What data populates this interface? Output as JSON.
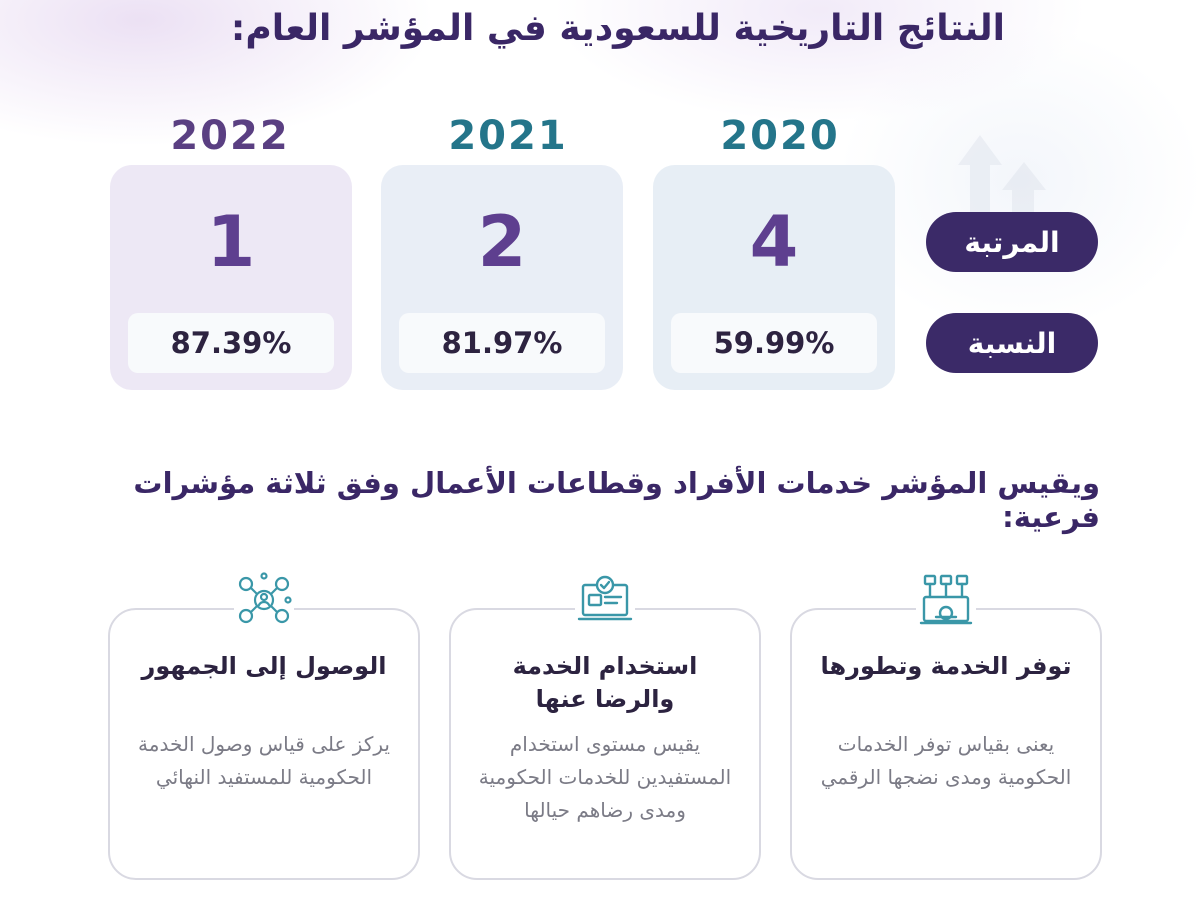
{
  "title": "النتائج التاريخية للسعودية في المؤشر العام:",
  "labels": {
    "rank": "المرتبة",
    "percentage": "النسبة"
  },
  "years": [
    {
      "year": "2020",
      "rank": "4",
      "percentage": "59.99%",
      "year_color": "#24758a"
    },
    {
      "year": "2021",
      "rank": "2",
      "percentage": "81.97%",
      "year_color": "#24758a"
    },
    {
      "year": "2022",
      "rank": "1",
      "percentage": "87.39%",
      "year_color": "#5a3f82"
    }
  ],
  "subtitle": "ويقيس المؤشر خدمات الأفراد وقطاعات الأعمال وفق ثلاثة مؤشرات فرعية:",
  "indicators": [
    {
      "icon": "service-availability-icon",
      "title": "توفر الخدمة وتطورها",
      "body": "يعنى بقياس توفر الخدمات الحكومية ومدى نضجها الرقمي"
    },
    {
      "icon": "service-usage-icon",
      "title": "استخدام الخدمة والرضا عنها",
      "body": "يقيس مستوى استخدام المستفيدين للخدمات الحكومية ومدى رضاهم حيالها"
    },
    {
      "icon": "audience-reach-icon",
      "title": "الوصول إلى الجمهور",
      "body": "يركز على قياس وصول الخدمة الحكومية للمستفيد النهائي"
    }
  ],
  "colors": {
    "accent": "#3b2a68",
    "teal": "#24758a",
    "rank": "#5e3f8f"
  }
}
